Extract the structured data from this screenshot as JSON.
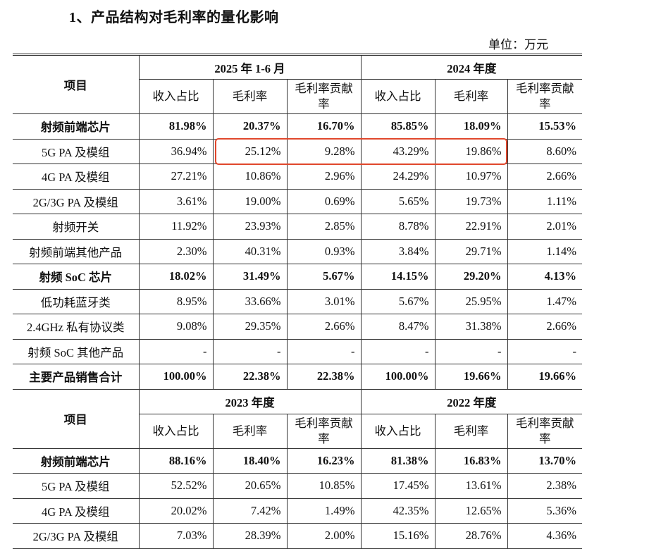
{
  "title": "1、产品结构对毛利率的量化影响",
  "unit": "单位：万元",
  "highlight_color": "#e0472c",
  "blocks": [
    {
      "item_header": "项目",
      "periods": [
        "2025 年 1-6 月",
        "2024 年度"
      ],
      "sub_headers": [
        "收入占比",
        "毛利率",
        "毛利率贡献率",
        "收入占比",
        "毛利率",
        "毛利率贡献率"
      ],
      "rows": [
        {
          "label": "射频前端芯片",
          "bold": true,
          "values": [
            "81.98%",
            "20.37%",
            "16.70%",
            "85.85%",
            "18.09%",
            "15.53%"
          ]
        },
        {
          "label": "5G PA 及模组",
          "bold": false,
          "highlighted": true,
          "values": [
            "36.94%",
            "25.12%",
            "9.28%",
            "43.29%",
            "19.86%",
            "8.60%"
          ]
        },
        {
          "label": "4G PA 及模组",
          "bold": false,
          "values": [
            "27.21%",
            "10.86%",
            "2.96%",
            "24.29%",
            "10.97%",
            "2.66%"
          ]
        },
        {
          "label": "2G/3G PA 及模组",
          "bold": false,
          "values": [
            "3.61%",
            "19.00%",
            "0.69%",
            "5.65%",
            "19.73%",
            "1.11%"
          ]
        },
        {
          "label": "射频开关",
          "bold": false,
          "values": [
            "11.92%",
            "23.93%",
            "2.85%",
            "8.78%",
            "22.91%",
            "2.01%"
          ]
        },
        {
          "label": "射频前端其他产品",
          "bold": false,
          "values": [
            "2.30%",
            "40.31%",
            "0.93%",
            "3.84%",
            "29.71%",
            "1.14%"
          ]
        },
        {
          "label": "射频 SoC 芯片",
          "bold": true,
          "values": [
            "18.02%",
            "31.49%",
            "5.67%",
            "14.15%",
            "29.20%",
            "4.13%"
          ]
        },
        {
          "label": "低功耗蓝牙类",
          "bold": false,
          "values": [
            "8.95%",
            "33.66%",
            "3.01%",
            "5.67%",
            "25.95%",
            "1.47%"
          ]
        },
        {
          "label": "2.4GHz 私有协议类",
          "bold": false,
          "values": [
            "9.08%",
            "29.35%",
            "2.66%",
            "8.47%",
            "31.38%",
            "2.66%"
          ]
        },
        {
          "label": "射频 SoC 其他产品",
          "bold": false,
          "values": [
            "-",
            "-",
            "-",
            "-",
            "-",
            "-"
          ]
        },
        {
          "label": "主要产品销售合计",
          "bold": true,
          "values": [
            "100.00%",
            "22.38%",
            "22.38%",
            "100.00%",
            "19.66%",
            "19.66%"
          ]
        }
      ]
    },
    {
      "item_header": "项目",
      "periods": [
        "2023 年度",
        "2022 年度"
      ],
      "sub_headers": [
        "收入占比",
        "毛利率",
        "毛利率贡献率",
        "收入占比",
        "毛利率",
        "毛利率贡献率"
      ],
      "rows": [
        {
          "label": "射频前端芯片",
          "bold": true,
          "values": [
            "88.16%",
            "18.40%",
            "16.23%",
            "81.38%",
            "16.83%",
            "13.70%"
          ]
        },
        {
          "label": "5G PA 及模组",
          "bold": false,
          "values": [
            "52.52%",
            "20.65%",
            "10.85%",
            "17.45%",
            "13.61%",
            "2.38%"
          ]
        },
        {
          "label": "4G PA 及模组",
          "bold": false,
          "values": [
            "20.02%",
            "7.42%",
            "1.49%",
            "42.35%",
            "12.65%",
            "5.36%"
          ]
        },
        {
          "label": "2G/3G PA 及模组",
          "bold": false,
          "values": [
            "7.03%",
            "28.39%",
            "2.00%",
            "15.16%",
            "28.76%",
            "4.36%"
          ]
        }
      ]
    }
  ]
}
